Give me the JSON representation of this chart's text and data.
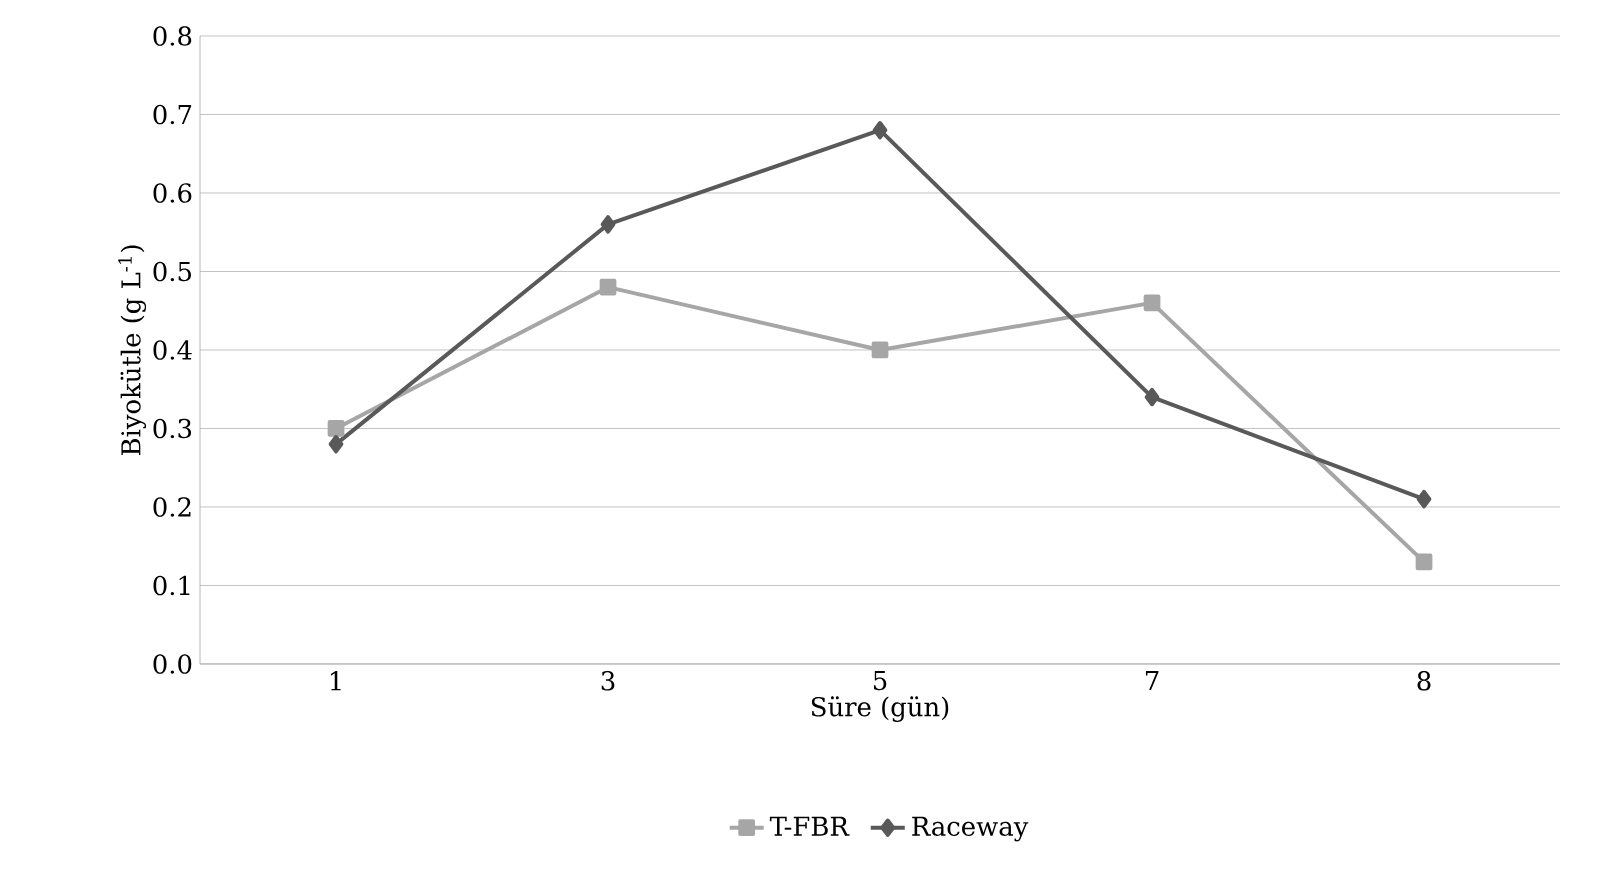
{
  "chart_data": {
    "type": "line",
    "xlabel": "Süre (gün)",
    "ylabel": "Biyokütle (g L$^{-1}$)",
    "categories": [
      "1",
      "3",
      "5",
      "7",
      "8"
    ],
    "series": [
      {
        "name": "T-FBR",
        "color": "#a6a6a6",
        "marker": "square",
        "values": [
          0.3,
          0.48,
          0.4,
          0.46,
          0.13
        ]
      },
      {
        "name": "Raceway",
        "color": "#595959",
        "marker": "diamond",
        "values": [
          0.28,
          0.56,
          0.68,
          0.34,
          0.21
        ]
      }
    ],
    "ylim": [
      0,
      0.8
    ],
    "yticks": [
      {
        "value": 0,
        "label": "0.0"
      },
      {
        "value": 0.1,
        "label": "0.1"
      },
      {
        "value": 0.2,
        "label": "0.2"
      },
      {
        "value": 0.3,
        "label": "0.3"
      },
      {
        "value": 0.4,
        "label": "0.4"
      },
      {
        "value": 0.5,
        "label": "0.5"
      },
      {
        "value": 0.6,
        "label": "0.6"
      },
      {
        "value": 0.7,
        "label": "0.7"
      },
      {
        "value": 0.8,
        "label": "0.8"
      }
    ],
    "grid": "y",
    "legend": "bottom",
    "line_style": "solid"
  }
}
